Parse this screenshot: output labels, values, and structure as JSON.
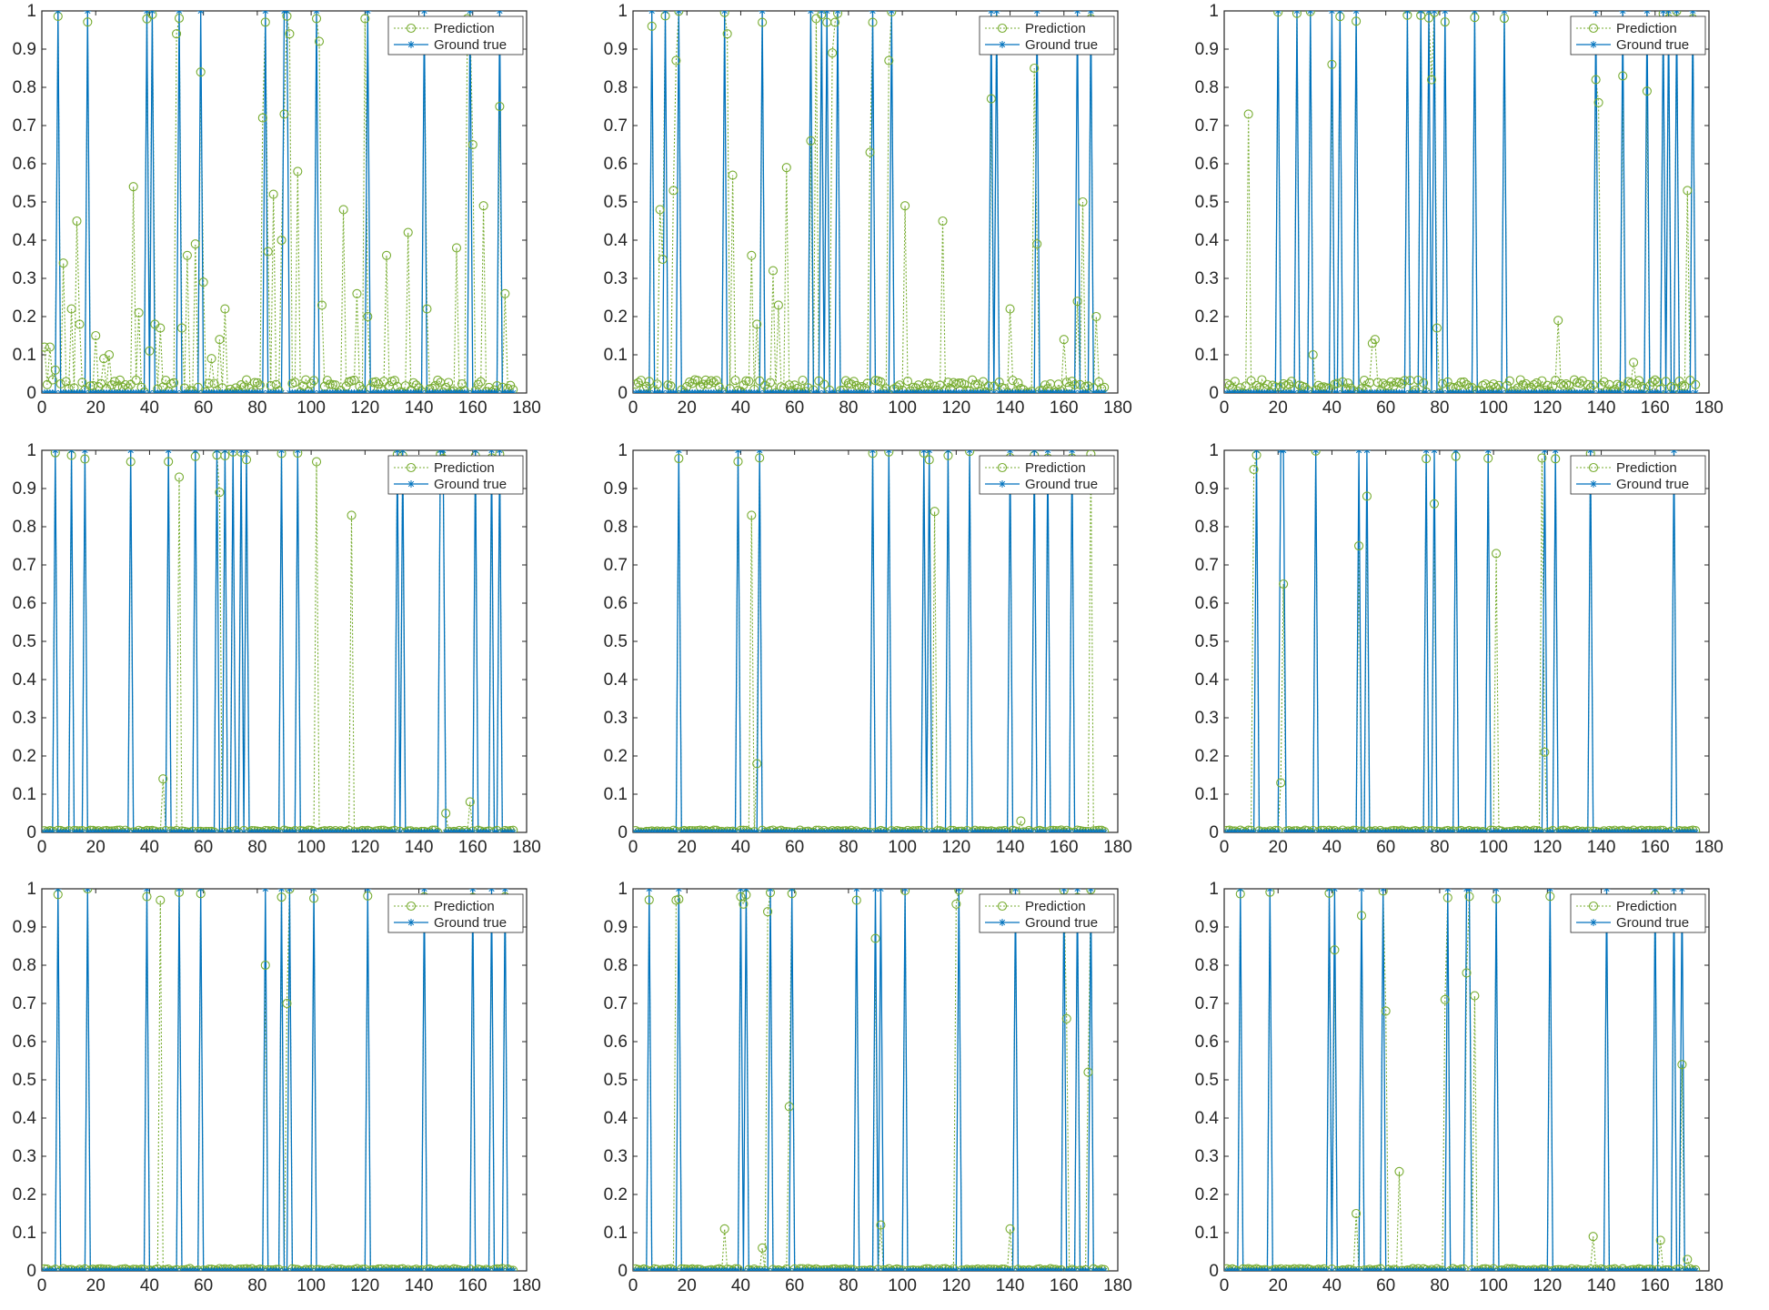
{
  "legend": {
    "prediction_label": "Prediction",
    "ground_label": "Ground true"
  },
  "colors": {
    "prediction": "#77AC30",
    "ground": "#0072BD",
    "axis": "#262626"
  },
  "chart_data": [
    {
      "type": "line",
      "panel": "row1-col1",
      "xlim": [
        0,
        180
      ],
      "ylim": [
        0,
        1
      ],
      "xticks": [
        0,
        20,
        40,
        60,
        80,
        100,
        120,
        140,
        160,
        180
      ],
      "yticks": [
        0,
        0.1,
        0.2,
        0.3,
        0.4,
        0.5,
        0.6,
        0.7,
        0.8,
        0.9,
        1
      ],
      "ground_ones": [
        6,
        17,
        39,
        41,
        51,
        59,
        83,
        90,
        91,
        102,
        121,
        142,
        159,
        170
      ],
      "prediction_peaks": [
        [
          1,
          0.12
        ],
        [
          3,
          0.12
        ],
        [
          5,
          0.06
        ],
        [
          8,
          0.34
        ],
        [
          11,
          0.22
        ],
        [
          13,
          0.45
        ],
        [
          14,
          0.18
        ],
        [
          20,
          0.15
        ],
        [
          23,
          0.09
        ],
        [
          25,
          0.1
        ],
        [
          34,
          0.54
        ],
        [
          36,
          0.21
        ],
        [
          40,
          0.11
        ],
        [
          42,
          0.18
        ],
        [
          44,
          0.17
        ],
        [
          50,
          0.94
        ],
        [
          52,
          0.17
        ],
        [
          54,
          0.36
        ],
        [
          57,
          0.39
        ],
        [
          59,
          0.84
        ],
        [
          60,
          0.29
        ],
        [
          63,
          0.09
        ],
        [
          66,
          0.14
        ],
        [
          68,
          0.22
        ],
        [
          82,
          0.72
        ],
        [
          84,
          0.37
        ],
        [
          86,
          0.52
        ],
        [
          89,
          0.4
        ],
        [
          90,
          0.73
        ],
        [
          92,
          0.94
        ],
        [
          95,
          0.58
        ],
        [
          102,
          0.98
        ],
        [
          103,
          0.92
        ],
        [
          104,
          0.23
        ],
        [
          112,
          0.48
        ],
        [
          117,
          0.26
        ],
        [
          120,
          0.98
        ],
        [
          121,
          0.2
        ],
        [
          128,
          0.36
        ],
        [
          136,
          0.42
        ],
        [
          143,
          0.22
        ],
        [
          154,
          0.38
        ],
        [
          158,
          0.98
        ],
        [
          160,
          0.65
        ],
        [
          164,
          0.49
        ],
        [
          170,
          0.75
        ],
        [
          172,
          0.26
        ]
      ]
    },
    {
      "type": "line",
      "panel": "row1-col2",
      "xlim": [
        0,
        180
      ],
      "ylim": [
        0,
        1
      ],
      "xticks": [
        0,
        20,
        40,
        60,
        80,
        100,
        120,
        140,
        160,
        180
      ],
      "yticks": [
        0,
        0.1,
        0.2,
        0.3,
        0.4,
        0.5,
        0.6,
        0.7,
        0.8,
        0.9,
        1
      ],
      "ground_ones": [
        7,
        12,
        17,
        34,
        48,
        66,
        70,
        72,
        76,
        89,
        96,
        133,
        135,
        150,
        165,
        170
      ],
      "prediction_peaks": [
        [
          7,
          0.96
        ],
        [
          10,
          0.48
        ],
        [
          11,
          0.35
        ],
        [
          15,
          0.53
        ],
        [
          16,
          0.87
        ],
        [
          35,
          0.94
        ],
        [
          37,
          0.57
        ],
        [
          44,
          0.36
        ],
        [
          46,
          0.18
        ],
        [
          48,
          0.97
        ],
        [
          52,
          0.32
        ],
        [
          54,
          0.23
        ],
        [
          57,
          0.59
        ],
        [
          66,
          0.66
        ],
        [
          68,
          0.98
        ],
        [
          72,
          0.97
        ],
        [
          74,
          0.89
        ],
        [
          75,
          0.97
        ],
        [
          88,
          0.63
        ],
        [
          95,
          0.87
        ],
        [
          101,
          0.49
        ],
        [
          115,
          0.45
        ],
        [
          133,
          0.77
        ],
        [
          140,
          0.22
        ],
        [
          149,
          0.85
        ],
        [
          150,
          0.39
        ],
        [
          160,
          0.14
        ],
        [
          165,
          0.24
        ],
        [
          167,
          0.5
        ],
        [
          170,
          0.98
        ],
        [
          172,
          0.2
        ]
      ]
    },
    {
      "type": "line",
      "panel": "row1-col3",
      "xlim": [
        0,
        180
      ],
      "ylim": [
        0,
        1
      ],
      "xticks": [
        0,
        20,
        40,
        60,
        80,
        100,
        120,
        140,
        160,
        180
      ],
      "yticks": [
        0,
        0.1,
        0.2,
        0.3,
        0.4,
        0.5,
        0.6,
        0.7,
        0.8,
        0.9,
        1
      ],
      "ground_ones": [
        20,
        27,
        32,
        40,
        43,
        49,
        68,
        73,
        76,
        78,
        82,
        93,
        104,
        138,
        148,
        157,
        163,
        165,
        168,
        174
      ],
      "prediction_peaks": [
        [
          9,
          0.73
        ],
        [
          33,
          0.1
        ],
        [
          40,
          0.86
        ],
        [
          55,
          0.13
        ],
        [
          56,
          0.14
        ],
        [
          77,
          0.82
        ],
        [
          79,
          0.17
        ],
        [
          124,
          0.19
        ],
        [
          138,
          0.82
        ],
        [
          139,
          0.76
        ],
        [
          148,
          0.83
        ],
        [
          152,
          0.08
        ],
        [
          157,
          0.79
        ],
        [
          172,
          0.53
        ],
        [
          174,
          0.98
        ]
      ]
    },
    {
      "type": "line",
      "panel": "row2-col1",
      "xlim": [
        0,
        180
      ],
      "ylim": [
        0,
        1
      ],
      "xticks": [
        0,
        20,
        40,
        60,
        80,
        100,
        120,
        140,
        160,
        180
      ],
      "yticks": [
        0,
        0.1,
        0.2,
        0.3,
        0.4,
        0.5,
        0.6,
        0.7,
        0.8,
        0.9,
        1
      ],
      "ground_ones": [
        5,
        11,
        16,
        33,
        47,
        57,
        65,
        68,
        71,
        74,
        76,
        89,
        95,
        132,
        134,
        148,
        149,
        161,
        167,
        170
      ],
      "prediction_peaks": [
        [
          45,
          0.14
        ],
        [
          51,
          0.93
        ],
        [
          66,
          0.89
        ],
        [
          102,
          0.97
        ],
        [
          115,
          0.83
        ],
        [
          150,
          0.05
        ],
        [
          159,
          0.08
        ]
      ]
    },
    {
      "type": "line",
      "panel": "row2-col2",
      "xlim": [
        0,
        180
      ],
      "ylim": [
        0,
        1
      ],
      "xticks": [
        0,
        20,
        40,
        60,
        80,
        100,
        120,
        140,
        160,
        180
      ],
      "yticks": [
        0,
        0.1,
        0.2,
        0.3,
        0.4,
        0.5,
        0.6,
        0.7,
        0.8,
        0.9,
        1
      ],
      "ground_ones": [
        17,
        39,
        47,
        89,
        95,
        108,
        110,
        117,
        125,
        140,
        149,
        154,
        163
      ],
      "prediction_peaks": [
        [
          44,
          0.83
        ],
        [
          46,
          0.18
        ],
        [
          112,
          0.84
        ],
        [
          144,
          0.03
        ],
        [
          170,
          0.99
        ]
      ]
    },
    {
      "type": "line",
      "panel": "row2-col3",
      "xlim": [
        0,
        180
      ],
      "ylim": [
        0,
        1
      ],
      "xticks": [
        0,
        20,
        40,
        60,
        80,
        100,
        120,
        140,
        160,
        180
      ],
      "yticks": [
        0,
        0.1,
        0.2,
        0.3,
        0.4,
        0.5,
        0.6,
        0.7,
        0.8,
        0.9,
        1
      ],
      "ground_ones": [
        12,
        21,
        22,
        34,
        50,
        53,
        75,
        78,
        86,
        98,
        119,
        123,
        136,
        167
      ],
      "prediction_peaks": [
        [
          11,
          0.95
        ],
        [
          21,
          0.13
        ],
        [
          22,
          0.65
        ],
        [
          50,
          0.75
        ],
        [
          53,
          0.88
        ],
        [
          78,
          0.86
        ],
        [
          101,
          0.73
        ],
        [
          118,
          0.98
        ],
        [
          119,
          0.21
        ]
      ]
    },
    {
      "type": "line",
      "panel": "row3-col1",
      "xlim": [
        0,
        180
      ],
      "ylim": [
        0,
        1
      ],
      "xticks": [
        0,
        20,
        40,
        60,
        80,
        100,
        120,
        140,
        160,
        180
      ],
      "yticks": [
        0,
        0.1,
        0.2,
        0.3,
        0.4,
        0.5,
        0.6,
        0.7,
        0.8,
        0.9,
        1
      ],
      "ground_ones": [
        6,
        17,
        39,
        51,
        59,
        83,
        89,
        92,
        101,
        121,
        142,
        160,
        167,
        172
      ],
      "prediction_peaks": [
        [
          44,
          0.97
        ],
        [
          83,
          0.8
        ],
        [
          91,
          0.7
        ]
      ]
    },
    {
      "type": "line",
      "panel": "row3-col2",
      "xlim": [
        0,
        180
      ],
      "ylim": [
        0,
        1
      ],
      "xticks": [
        0,
        20,
        40,
        60,
        80,
        100,
        120,
        140,
        160,
        180
      ],
      "yticks": [
        0,
        0.1,
        0.2,
        0.3,
        0.4,
        0.5,
        0.6,
        0.7,
        0.8,
        0.9,
        1
      ],
      "ground_ones": [
        6,
        17,
        40,
        42,
        51,
        59,
        83,
        90,
        92,
        101,
        121,
        142,
        160,
        165,
        170
      ],
      "prediction_peaks": [
        [
          16,
          0.97
        ],
        [
          34,
          0.11
        ],
        [
          41,
          0.96
        ],
        [
          48,
          0.06
        ],
        [
          50,
          0.94
        ],
        [
          58,
          0.43
        ],
        [
          83,
          0.97
        ],
        [
          90,
          0.87
        ],
        [
          92,
          0.12
        ],
        [
          120,
          0.96
        ],
        [
          140,
          0.11
        ],
        [
          161,
          0.66
        ],
        [
          169,
          0.52
        ]
      ]
    },
    {
      "type": "line",
      "panel": "row3-col3",
      "xlim": [
        0,
        180
      ],
      "ylim": [
        0,
        1
      ],
      "xticks": [
        0,
        20,
        40,
        60,
        80,
        100,
        120,
        140,
        160,
        180
      ],
      "yticks": [
        0,
        0.1,
        0.2,
        0.3,
        0.4,
        0.5,
        0.6,
        0.7,
        0.8,
        0.9,
        1
      ],
      "ground_ones": [
        6,
        17,
        39,
        41,
        51,
        59,
        83,
        90,
        91,
        101,
        121,
        142,
        160,
        167,
        170
      ],
      "prediction_peaks": [
        [
          41,
          0.84
        ],
        [
          49,
          0.15
        ],
        [
          51,
          0.93
        ],
        [
          60,
          0.68
        ],
        [
          65,
          0.26
        ],
        [
          82,
          0.71
        ],
        [
          90,
          0.78
        ],
        [
          91,
          0.98
        ],
        [
          93,
          0.72
        ],
        [
          137,
          0.09
        ],
        [
          162,
          0.08
        ],
        [
          170,
          0.54
        ],
        [
          172,
          0.03
        ]
      ]
    }
  ]
}
